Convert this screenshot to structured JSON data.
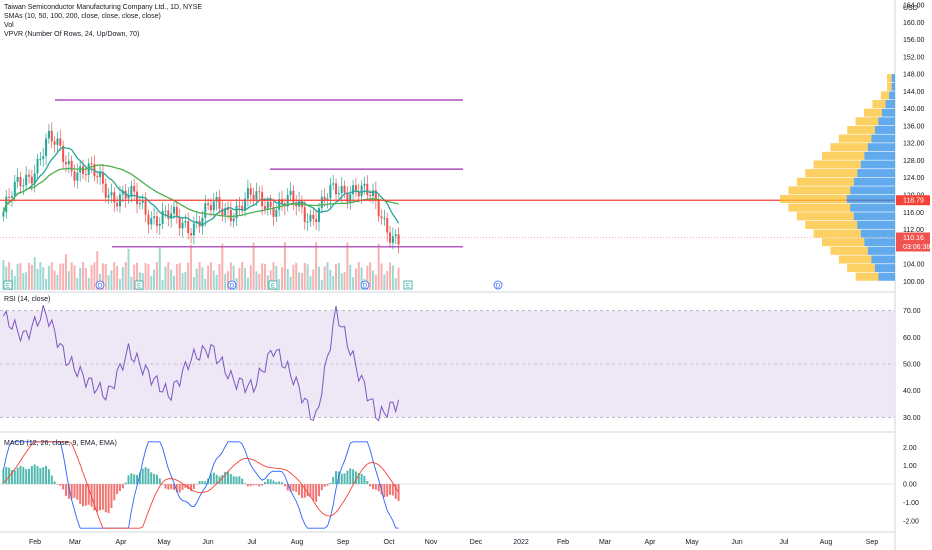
{
  "header": {
    "title": "Taiwan Semiconductor Manufacturing Company Ltd., 1D, NYSE",
    "indicators": [
      "SMAs (10, 50, 100, 200, close, close, close, close)",
      "Vol",
      "VPVR (Number Of Rows, 24, Up/Down, 70)"
    ]
  },
  "currency": "USD",
  "price_axis": {
    "labels": [
      "164.00",
      "160.00",
      "156.00",
      "152.00",
      "148.00",
      "144.00",
      "140.00",
      "136.00",
      "132.00",
      "128.00",
      "124.00",
      "120.00",
      "116.00",
      "112.00",
      "108.00",
      "104.00",
      "100.00"
    ],
    "current_price": "110.16",
    "countdown": "03:06:38",
    "poc_price": "118.79"
  },
  "time_axis": [
    "Feb",
    "Mar",
    "Apr",
    "May",
    "Jun",
    "Jul",
    "Aug",
    "Sep",
    "Oct",
    "Nov",
    "Dec",
    "2022",
    "Feb",
    "Mar",
    "Apr",
    "May",
    "Jun",
    "Jul",
    "Aug",
    "Sep"
  ],
  "rsi": {
    "label": "RSI (14, close)",
    "axis": [
      "70.00",
      "60.00",
      "50.00",
      "40.00",
      "30.00"
    ]
  },
  "macd": {
    "label": "MACD (12, 26, close, 9, EMA, EMA)",
    "axis": [
      "2.00",
      "1.00",
      "0.00",
      "-1.00",
      "-2.00"
    ]
  },
  "colors": {
    "up": "#26a69a",
    "down": "#ef5350",
    "sma_short": "#26a69a",
    "sma_long": "#4caf50",
    "level_line": "#9c27b0",
    "poc_line": "#f44336",
    "rsi_line": "#7e57c2",
    "rsi_band": "#ede7f6",
    "macd_line": "#2962ff",
    "signal_line": "#f44336",
    "vp_up": "#1e88e5",
    "vp_down": "#fbc02d"
  },
  "events": [
    {
      "type": "earnings",
      "label": "E"
    },
    {
      "type": "dividend",
      "label": "D"
    },
    {
      "type": "earnings",
      "label": "E"
    },
    {
      "type": "dividend",
      "label": "D"
    },
    {
      "type": "earnings",
      "label": "E"
    },
    {
      "type": "dividend",
      "label": "D"
    },
    {
      "type": "earnings",
      "label": "E"
    },
    {
      "type": "dividend",
      "label": "D"
    }
  ],
  "chart_data": [
    {
      "type": "line",
      "name": "price",
      "x": [
        "Jan",
        "Feb",
        "Mar",
        "Apr",
        "May",
        "Jun",
        "Jul",
        "Aug",
        "Sep",
        "Oct"
      ],
      "close": [
        116,
        132,
        124,
        118,
        113,
        117,
        119,
        116,
        123,
        110.16
      ],
      "levels": [
        142,
        126,
        108,
        118.79
      ],
      "ylim": [
        98,
        164
      ]
    },
    {
      "type": "line",
      "name": "rsi",
      "values": [
        68,
        60,
        70,
        52,
        44,
        38,
        55,
        46,
        38,
        52,
        56,
        44,
        41,
        56,
        44,
        28,
        70,
        48,
        30,
        36
      ],
      "ylim": [
        26,
        74
      ],
      "bands": [
        30,
        50,
        70
      ]
    },
    {
      "type": "bar",
      "name": "macd",
      "histogram": [
        0.8,
        0.9,
        1.0,
        -0.6,
        -1.2,
        -1.6,
        0.4,
        0.9,
        -0.4,
        -0.3,
        0.5,
        0.6,
        -0.2,
        0.3,
        -0.5,
        -0.9,
        0.6,
        0.8,
        -0.5,
        -0.8
      ],
      "ylim": [
        -2.5,
        2.4
      ]
    }
  ]
}
